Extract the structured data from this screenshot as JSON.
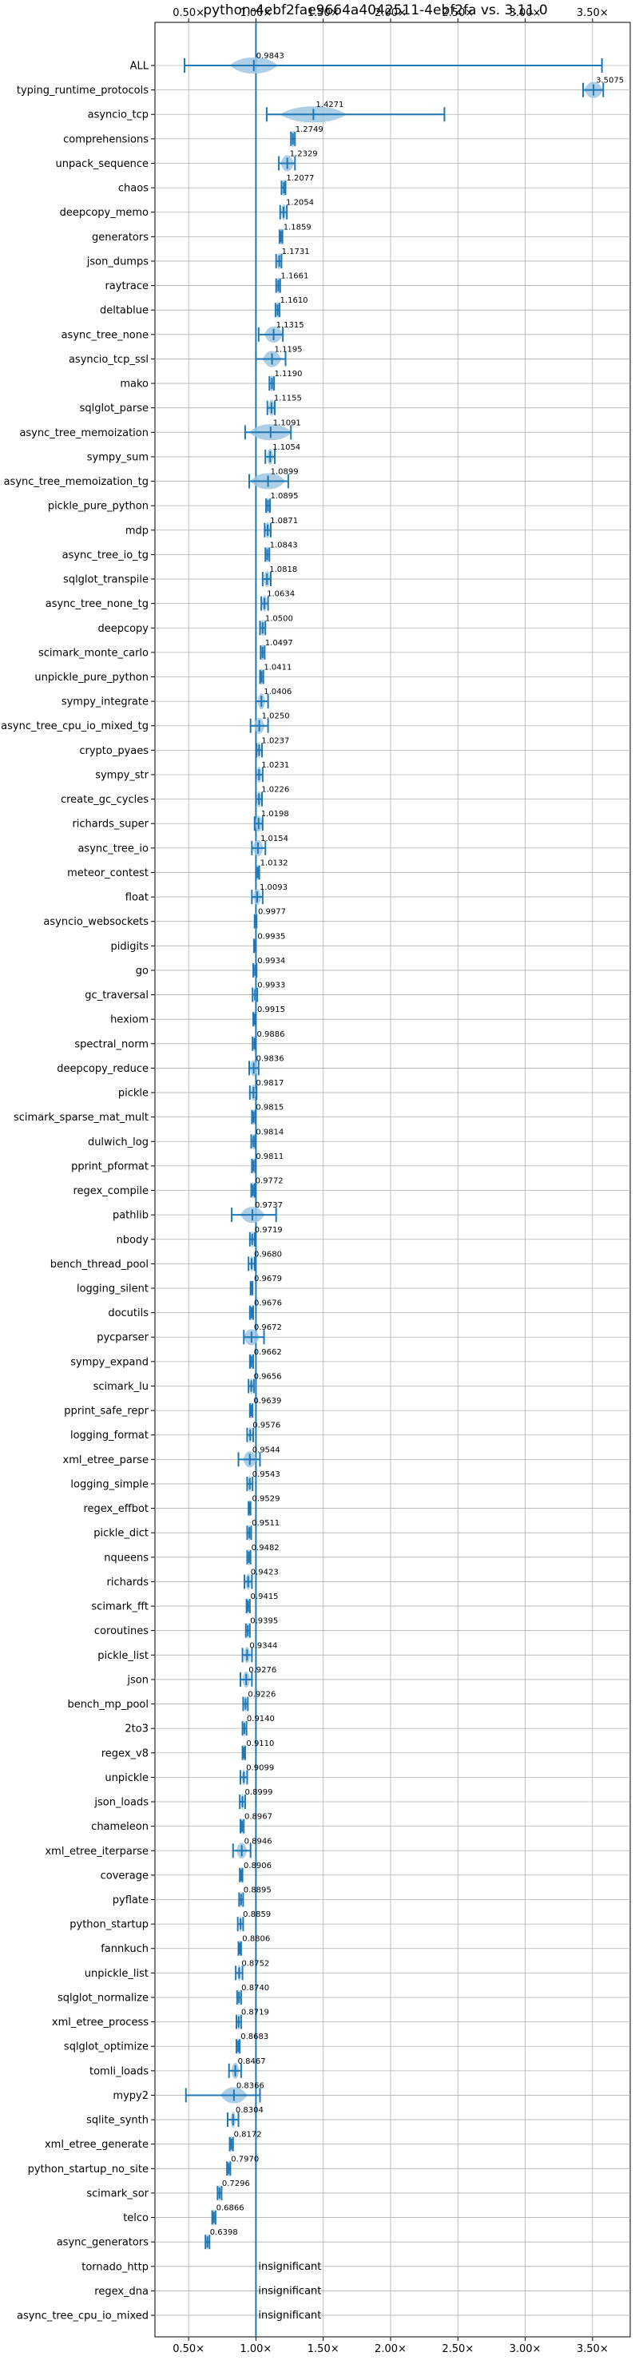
{
  "chart_data": {
    "type": "violin",
    "title": "python-4ebf2fae9664a4042511-4ebf2fa vs. 3.11.0",
    "x_ticks": [
      0.5,
      1.0,
      1.5,
      2.0,
      2.5,
      3.0,
      3.5
    ],
    "x_tick_labels": [
      "0.50×",
      "1.00×",
      "1.50×",
      "2.00×",
      "2.50×",
      "3.00×",
      "3.50×"
    ],
    "xlim": [
      0.25,
      3.78
    ],
    "reference_line": 1.0,
    "colors": {
      "violin": "#9ec5e3",
      "errorbar": "#1f77b4",
      "reference": "#1f77b4",
      "grid": "#b0b0b0"
    },
    "insignificant_label": "insignificant",
    "benchmarks": [
      {
        "name": "ALL",
        "median": 0.9843,
        "min": 0.47,
        "max": 3.57,
        "spread": 0.18,
        "label": "0.9843"
      },
      {
        "name": "typing_runtime_protocols",
        "median": 3.5075,
        "min": 3.43,
        "max": 3.58,
        "spread": 0.07,
        "label": "3.5075"
      },
      {
        "name": "asyncio_tcp",
        "median": 1.4271,
        "min": 1.08,
        "max": 2.4,
        "spread": 0.25,
        "label": "1.4271"
      },
      {
        "name": "comprehensions",
        "median": 1.2749,
        "min": 1.26,
        "max": 1.29,
        "spread": 0.02,
        "label": "1.2749"
      },
      {
        "name": "unpack_sequence",
        "median": 1.2329,
        "min": 1.17,
        "max": 1.29,
        "spread": 0.05,
        "label": "1.2329"
      },
      {
        "name": "chaos",
        "median": 1.2077,
        "min": 1.19,
        "max": 1.22,
        "spread": 0.02,
        "label": "1.2077"
      },
      {
        "name": "deepcopy_memo",
        "median": 1.2054,
        "min": 1.18,
        "max": 1.23,
        "spread": 0.02,
        "label": "1.2054"
      },
      {
        "name": "generators",
        "median": 1.1859,
        "min": 1.175,
        "max": 1.197,
        "spread": 0.015,
        "label": "1.1859"
      },
      {
        "name": "json_dumps",
        "median": 1.1731,
        "min": 1.15,
        "max": 1.19,
        "spread": 0.02,
        "label": "1.1731"
      },
      {
        "name": "raytrace",
        "median": 1.1661,
        "min": 1.15,
        "max": 1.18,
        "spread": 0.015,
        "label": "1.1661"
      },
      {
        "name": "deltablue",
        "median": 1.161,
        "min": 1.145,
        "max": 1.175,
        "spread": 0.015,
        "label": "1.1610"
      },
      {
        "name": "async_tree_none",
        "median": 1.1315,
        "min": 1.02,
        "max": 1.2,
        "spread": 0.07,
        "label": "1.1315"
      },
      {
        "name": "asyncio_tcp_ssl",
        "median": 1.1195,
        "min": 1.0,
        "max": 1.22,
        "spread": 0.07,
        "label": "1.1195"
      },
      {
        "name": "mako",
        "median": 1.119,
        "min": 1.1,
        "max": 1.135,
        "spread": 0.02,
        "label": "1.1190"
      },
      {
        "name": "sqlglot_parse",
        "median": 1.1155,
        "min": 1.085,
        "max": 1.14,
        "spread": 0.025,
        "label": "1.1155"
      },
      {
        "name": "async_tree_memoization",
        "median": 1.1091,
        "min": 0.92,
        "max": 1.26,
        "spread": 0.16,
        "label": "1.1091"
      },
      {
        "name": "sympy_sum",
        "median": 1.1054,
        "min": 1.07,
        "max": 1.14,
        "spread": 0.025,
        "label": "1.1054"
      },
      {
        "name": "async_tree_memoization_tg",
        "median": 1.0899,
        "min": 0.95,
        "max": 1.24,
        "spread": 0.13,
        "label": "1.0899"
      },
      {
        "name": "pickle_pure_python",
        "median": 1.0895,
        "min": 1.075,
        "max": 1.105,
        "spread": 0.015,
        "label": "1.0895"
      },
      {
        "name": "mdp",
        "median": 1.0871,
        "min": 1.065,
        "max": 1.11,
        "spread": 0.02,
        "label": "1.0871"
      },
      {
        "name": "async_tree_io_tg",
        "median": 1.0843,
        "min": 1.07,
        "max": 1.1,
        "spread": 0.015,
        "label": "1.0843"
      },
      {
        "name": "sqlglot_transpile",
        "median": 1.0818,
        "min": 1.05,
        "max": 1.11,
        "spread": 0.025,
        "label": "1.0818"
      },
      {
        "name": "async_tree_none_tg",
        "median": 1.0634,
        "min": 1.04,
        "max": 1.09,
        "spread": 0.02,
        "label": "1.0634"
      },
      {
        "name": "deepcopy",
        "median": 1.05,
        "min": 1.03,
        "max": 1.07,
        "spread": 0.02,
        "label": "1.0500"
      },
      {
        "name": "scimark_monte_carlo",
        "median": 1.0497,
        "min": 1.035,
        "max": 1.065,
        "spread": 0.015,
        "label": "1.0497"
      },
      {
        "name": "unpickle_pure_python",
        "median": 1.0411,
        "min": 1.03,
        "max": 1.055,
        "spread": 0.012,
        "label": "1.0411"
      },
      {
        "name": "sympy_integrate",
        "median": 1.0406,
        "min": 1.0,
        "max": 1.09,
        "spread": 0.03,
        "label": "1.0406"
      },
      {
        "name": "async_tree_cpu_io_mixed_tg",
        "median": 1.025,
        "min": 0.96,
        "max": 1.09,
        "spread": 0.04,
        "label": "1.0250"
      },
      {
        "name": "crypto_pyaes",
        "median": 1.0237,
        "min": 1.005,
        "max": 1.045,
        "spread": 0.015,
        "label": "1.0237"
      },
      {
        "name": "sympy_str",
        "median": 1.0231,
        "min": 1.0,
        "max": 1.05,
        "spread": 0.02,
        "label": "1.0231"
      },
      {
        "name": "create_gc_cycles",
        "median": 1.0226,
        "min": 1.0,
        "max": 1.045,
        "spread": 0.02,
        "label": "1.0226"
      },
      {
        "name": "richards_super",
        "median": 1.0198,
        "min": 0.99,
        "max": 1.05,
        "spread": 0.03,
        "label": "1.0198"
      },
      {
        "name": "async_tree_io",
        "median": 1.0154,
        "min": 0.97,
        "max": 1.07,
        "spread": 0.04,
        "label": "1.0154"
      },
      {
        "name": "meteor_contest",
        "median": 1.0132,
        "min": 1.0,
        "max": 1.025,
        "spread": 0.012,
        "label": "1.0132"
      },
      {
        "name": "float",
        "median": 1.0093,
        "min": 0.97,
        "max": 1.05,
        "spread": 0.03,
        "label": "1.0093"
      },
      {
        "name": "asyncio_websockets",
        "median": 0.9977,
        "min": 0.99,
        "max": 1.005,
        "spread": 0.008,
        "label": "0.9977"
      },
      {
        "name": "pidigits",
        "median": 0.9935,
        "min": 0.985,
        "max": 1.0,
        "spread": 0.008,
        "label": "0.9935"
      },
      {
        "name": "go",
        "median": 0.9934,
        "min": 0.98,
        "max": 1.005,
        "spread": 0.01,
        "label": "0.9934"
      },
      {
        "name": "gc_traversal",
        "median": 0.9933,
        "min": 0.975,
        "max": 1.01,
        "spread": 0.012,
        "label": "0.9933"
      },
      {
        "name": "hexiom",
        "median": 0.9915,
        "min": 0.98,
        "max": 1.0,
        "spread": 0.01,
        "label": "0.9915"
      },
      {
        "name": "spectral_norm",
        "median": 0.9886,
        "min": 0.975,
        "max": 1.0,
        "spread": 0.01,
        "label": "0.9886"
      },
      {
        "name": "deepcopy_reduce",
        "median": 0.9836,
        "min": 0.95,
        "max": 1.02,
        "spread": 0.03,
        "label": "0.9836"
      },
      {
        "name": "pickle",
        "median": 0.9817,
        "min": 0.955,
        "max": 1.005,
        "spread": 0.02,
        "label": "0.9817"
      },
      {
        "name": "scimark_sparse_mat_mult",
        "median": 0.9815,
        "min": 0.97,
        "max": 0.995,
        "spread": 0.01,
        "label": "0.9815"
      },
      {
        "name": "dulwich_log",
        "median": 0.9814,
        "min": 0.965,
        "max": 0.995,
        "spread": 0.012,
        "label": "0.9814"
      },
      {
        "name": "pprint_pformat",
        "median": 0.9811,
        "min": 0.97,
        "max": 0.995,
        "spread": 0.01,
        "label": "0.9811"
      },
      {
        "name": "regex_compile",
        "median": 0.9772,
        "min": 0.965,
        "max": 0.99,
        "spread": 0.01,
        "label": "0.9772"
      },
      {
        "name": "pathlib",
        "median": 0.9737,
        "min": 0.82,
        "max": 1.15,
        "spread": 0.09,
        "label": "0.9737"
      },
      {
        "name": "nbody",
        "median": 0.9719,
        "min": 0.955,
        "max": 0.99,
        "spread": 0.012,
        "label": "0.9719"
      },
      {
        "name": "bench_thread_pool",
        "median": 0.968,
        "min": 0.945,
        "max": 0.99,
        "spread": 0.015,
        "label": "0.9680"
      },
      {
        "name": "logging_silent",
        "median": 0.9679,
        "min": 0.96,
        "max": 0.975,
        "spread": 0.008,
        "label": "0.9679"
      },
      {
        "name": "docutils",
        "median": 0.9676,
        "min": 0.955,
        "max": 0.98,
        "spread": 0.01,
        "label": "0.9676"
      },
      {
        "name": "pycparser",
        "median": 0.9672,
        "min": 0.91,
        "max": 1.06,
        "spread": 0.06,
        "label": "0.9672"
      },
      {
        "name": "sympy_expand",
        "median": 0.9662,
        "min": 0.955,
        "max": 0.98,
        "spread": 0.01,
        "label": "0.9662"
      },
      {
        "name": "scimark_lu",
        "median": 0.9656,
        "min": 0.945,
        "max": 0.985,
        "spread": 0.015,
        "label": "0.9656"
      },
      {
        "name": "pprint_safe_repr",
        "median": 0.9639,
        "min": 0.955,
        "max": 0.975,
        "spread": 0.008,
        "label": "0.9639"
      },
      {
        "name": "logging_format",
        "median": 0.9576,
        "min": 0.935,
        "max": 0.98,
        "spread": 0.015,
        "label": "0.9576"
      },
      {
        "name": "xml_etree_parse",
        "median": 0.9544,
        "min": 0.87,
        "max": 1.03,
        "spread": 0.05,
        "label": "0.9544"
      },
      {
        "name": "logging_simple",
        "median": 0.9543,
        "min": 0.935,
        "max": 0.975,
        "spread": 0.015,
        "label": "0.9543"
      },
      {
        "name": "regex_effbot",
        "median": 0.9529,
        "min": 0.945,
        "max": 0.96,
        "spread": 0.008,
        "label": "0.9529"
      },
      {
        "name": "pickle_dict",
        "median": 0.9511,
        "min": 0.935,
        "max": 0.965,
        "spread": 0.012,
        "label": "0.9511"
      },
      {
        "name": "nqueens",
        "median": 0.9482,
        "min": 0.935,
        "max": 0.96,
        "spread": 0.01,
        "label": "0.9482"
      },
      {
        "name": "richards",
        "median": 0.9423,
        "min": 0.915,
        "max": 0.97,
        "spread": 0.02,
        "label": "0.9423"
      },
      {
        "name": "scimark_fft",
        "median": 0.9415,
        "min": 0.93,
        "max": 0.955,
        "spread": 0.01,
        "label": "0.9415"
      },
      {
        "name": "coroutines",
        "median": 0.9395,
        "min": 0.925,
        "max": 0.955,
        "spread": 0.01,
        "label": "0.9395"
      },
      {
        "name": "pickle_list",
        "median": 0.9344,
        "min": 0.9,
        "max": 0.97,
        "spread": 0.025,
        "label": "0.9344"
      },
      {
        "name": "json",
        "median": 0.9276,
        "min": 0.885,
        "max": 0.97,
        "spread": 0.03,
        "label": "0.9276"
      },
      {
        "name": "bench_mp_pool",
        "median": 0.9226,
        "min": 0.905,
        "max": 0.94,
        "spread": 0.012,
        "label": "0.9226"
      },
      {
        "name": "2to3",
        "median": 0.914,
        "min": 0.9,
        "max": 0.93,
        "spread": 0.01,
        "label": "0.9140"
      },
      {
        "name": "regex_v8",
        "median": 0.911,
        "min": 0.9,
        "max": 0.92,
        "spread": 0.008,
        "label": "0.9110"
      },
      {
        "name": "unpickle",
        "median": 0.9099,
        "min": 0.885,
        "max": 0.935,
        "spread": 0.015,
        "label": "0.9099"
      },
      {
        "name": "json_loads",
        "median": 0.8999,
        "min": 0.88,
        "max": 0.92,
        "spread": 0.012,
        "label": "0.8999"
      },
      {
        "name": "chameleon",
        "median": 0.8967,
        "min": 0.885,
        "max": 0.91,
        "spread": 0.01,
        "label": "0.8967"
      },
      {
        "name": "xml_etree_iterparse",
        "median": 0.8946,
        "min": 0.83,
        "max": 0.96,
        "spread": 0.04,
        "label": "0.8946"
      },
      {
        "name": "coverage",
        "median": 0.8906,
        "min": 0.88,
        "max": 0.9,
        "spread": 0.008,
        "label": "0.8906"
      },
      {
        "name": "pyflate",
        "median": 0.8895,
        "min": 0.875,
        "max": 0.905,
        "spread": 0.01,
        "label": "0.8895"
      },
      {
        "name": "python_startup",
        "median": 0.8859,
        "min": 0.865,
        "max": 0.905,
        "spread": 0.012,
        "label": "0.8859"
      },
      {
        "name": "fannkuch",
        "median": 0.8806,
        "min": 0.87,
        "max": 0.89,
        "spread": 0.008,
        "label": "0.8806"
      },
      {
        "name": "unpickle_list",
        "median": 0.8752,
        "min": 0.85,
        "max": 0.9,
        "spread": 0.015,
        "label": "0.8752"
      },
      {
        "name": "sqlglot_normalize",
        "median": 0.874,
        "min": 0.86,
        "max": 0.89,
        "spread": 0.01,
        "label": "0.8740"
      },
      {
        "name": "xml_etree_process",
        "median": 0.8719,
        "min": 0.855,
        "max": 0.89,
        "spread": 0.012,
        "label": "0.8719"
      },
      {
        "name": "sqlglot_optimize",
        "median": 0.8683,
        "min": 0.855,
        "max": 0.88,
        "spread": 0.01,
        "label": "0.8683"
      },
      {
        "name": "tomli_loads",
        "median": 0.8467,
        "min": 0.8,
        "max": 0.89,
        "spread": 0.03,
        "label": "0.8467"
      },
      {
        "name": "mypy2",
        "median": 0.8366,
        "min": 0.48,
        "max": 1.03,
        "spread": 0.1,
        "label": "0.8366"
      },
      {
        "name": "sqlite_synth",
        "median": 0.8304,
        "min": 0.79,
        "max": 0.87,
        "spread": 0.02,
        "label": "0.8304"
      },
      {
        "name": "xml_etree_generate",
        "median": 0.8172,
        "min": 0.805,
        "max": 0.83,
        "spread": 0.01,
        "label": "0.8172"
      },
      {
        "name": "python_startup_no_site",
        "median": 0.797,
        "min": 0.785,
        "max": 0.81,
        "spread": 0.01,
        "label": "0.7970"
      },
      {
        "name": "scimark_sor",
        "median": 0.7296,
        "min": 0.715,
        "max": 0.745,
        "spread": 0.01,
        "label": "0.7296"
      },
      {
        "name": "telco",
        "median": 0.6866,
        "min": 0.675,
        "max": 0.7,
        "spread": 0.01,
        "label": "0.6866"
      },
      {
        "name": "async_generators",
        "median": 0.6398,
        "min": 0.625,
        "max": 0.655,
        "spread": 0.01,
        "label": "0.6398"
      },
      {
        "name": "tornado_http",
        "insignificant": true
      },
      {
        "name": "regex_dna",
        "insignificant": true
      },
      {
        "name": "async_tree_cpu_io_mixed",
        "insignificant": true
      }
    ]
  }
}
